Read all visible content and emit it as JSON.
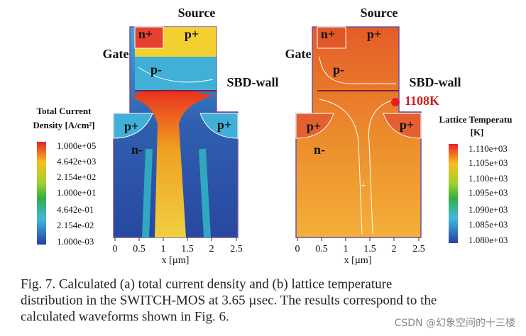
{
  "left_panel": {
    "top_label": "Source",
    "gate_label": "Gate",
    "wall_label": "SBD-wall",
    "regions": [
      "n+",
      "p+",
      "p-",
      "p+",
      "p+",
      "n-"
    ],
    "colorbar": {
      "title": [
        "Total Current",
        "Density [A/cm²]"
      ],
      "ticks": [
        "1.000e+05",
        "4.642e+03",
        "2.154e+02",
        "1.000e+01",
        "4.642e-01",
        "2.154e-02",
        "1.000e-03"
      ]
    },
    "x_axis": {
      "ticks": [
        "0",
        "0.5",
        "1",
        "1.5",
        "2",
        "2.5"
      ],
      "label": "x [µm]"
    }
  },
  "right_panel": {
    "top_label": "Source",
    "gate_label": "Gate",
    "wall_label": "SBD-wall",
    "regions": [
      "n+",
      "p+",
      "p-",
      "p+",
      "p+",
      "n-"
    ],
    "annotation": "1108K",
    "colorbar": {
      "title": [
        "Lattice Temperatu",
        "[K]"
      ],
      "ticks": [
        "1.110e+03",
        "1.105e+03",
        "1.100e+03",
        "1.095e+03",
        "1.090e+03",
        "1.085e+03",
        "1.080e+03"
      ]
    },
    "x_axis": {
      "ticks": [
        "0",
        "0.5",
        "1",
        "1.5",
        "2",
        "2.5"
      ],
      "label": "x [µm]"
    }
  },
  "caption": [
    "Fig. 7. Calculated (a) total current density and (b) lattice temperature",
    "distribution in the SWITCH-MOS at 3.65 µsec. The results correspond to the",
    "calculated waveforms shown in Fig. 6."
  ],
  "watermark": "CSDN @幻象空间的十三楼"
}
